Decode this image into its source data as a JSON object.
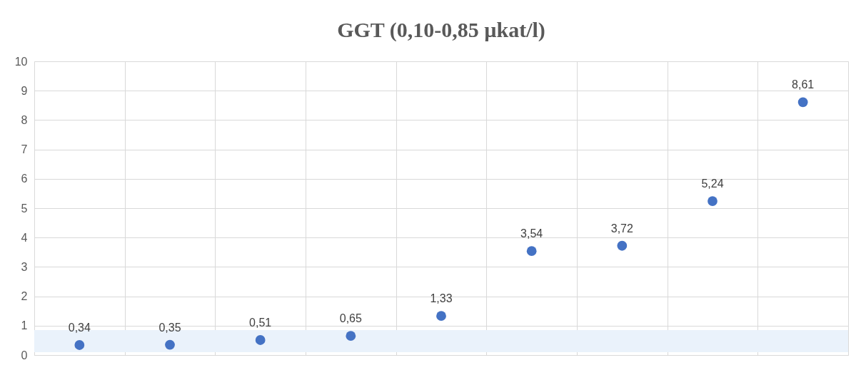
{
  "chart_data": {
    "type": "scatter",
    "title": "GGT (0,10-0,85 µkat/l)",
    "categories": [
      null,
      null,
      null,
      null,
      null,
      null,
      null,
      null,
      null
    ],
    "series": [
      {
        "color": "#4472c4",
        "values": [
          0.34,
          0.35,
          0.51,
          0.65,
          1.33,
          3.54,
          3.72,
          5.24,
          8.61
        ],
        "value_labels": [
          "0,34",
          "0,35",
          "0,51",
          "0,65",
          "1,33",
          "3,54",
          "3,72",
          "5,24",
          "8,61"
        ]
      }
    ],
    "ylim": [
      0,
      10
    ],
    "yticks": [
      0,
      1,
      2,
      3,
      4,
      5,
      6,
      7,
      8,
      9,
      10
    ],
    "bands": [
      {
        "axis": "y",
        "from": 0.1,
        "to": 0.85,
        "color": "#eaf2fb"
      }
    ],
    "grid": true,
    "marker": "circle",
    "tick_labels": "y"
  }
}
